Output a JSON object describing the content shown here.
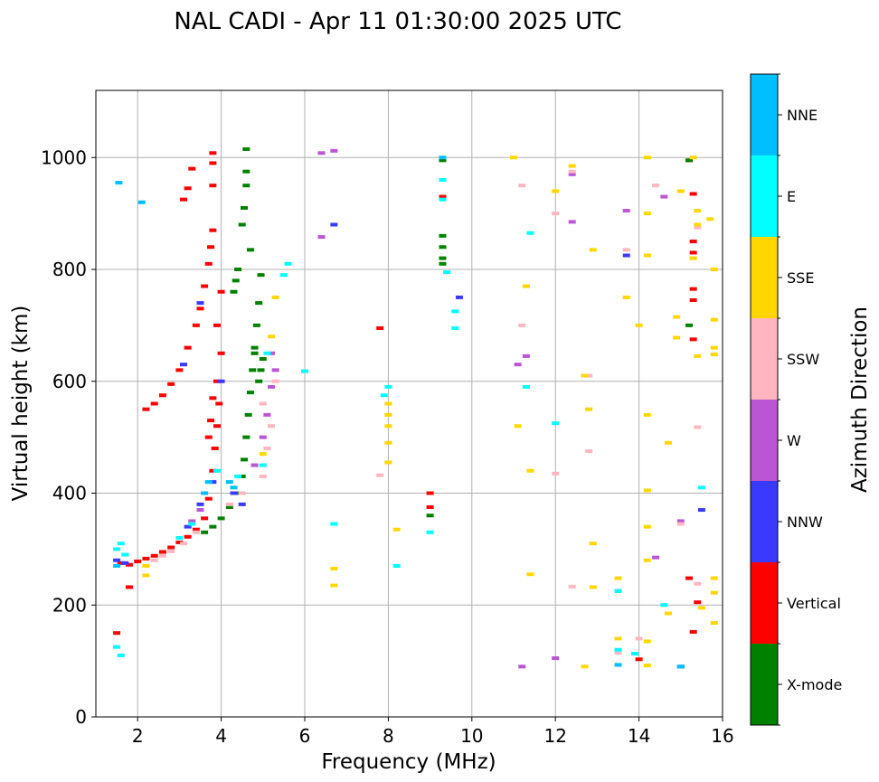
{
  "chart_data": {
    "type": "scatter",
    "title": "NAL CADI - Apr 11 01:30:00 2025 UTC",
    "xlabel": "Frequency (MHz)",
    "ylabel": "Virtual height (km)",
    "xlim": [
      1,
      16
    ],
    "ylim": [
      0,
      1120
    ],
    "xticks": [
      2,
      4,
      6,
      8,
      10,
      12,
      14,
      16
    ],
    "yticks": [
      0,
      200,
      400,
      600,
      800,
      1000
    ],
    "xtick_labels": [
      "2",
      "4",
      "6",
      "8",
      "10",
      "12",
      "14",
      "16"
    ],
    "ytick_labels": [
      "0",
      "200",
      "400",
      "600",
      "800",
      "1000"
    ],
    "grid": true,
    "colorbar": {
      "label": "Azimuth Direction",
      "categories": [
        {
          "name": "X-mode",
          "color": "#008000"
        },
        {
          "name": "Vertical",
          "color": "#ff0000"
        },
        {
          "name": "NNW",
          "color": "#3a3aff"
        },
        {
          "name": "W",
          "color": "#ba55d3"
        },
        {
          "name": "SSW",
          "color": "#ffb6c1"
        },
        {
          "name": "SSE",
          "color": "#ffd700"
        },
        {
          "name": "E",
          "color": "#00ffff"
        },
        {
          "name": "NNE",
          "color": "#00bfff"
        }
      ]
    },
    "series": [
      {
        "name": "Vertical",
        "points": [
          [
            1.6,
            275
          ],
          [
            1.8,
            272
          ],
          [
            2.0,
            278
          ],
          [
            2.2,
            283
          ],
          [
            2.4,
            288
          ],
          [
            2.6,
            295
          ],
          [
            2.8,
            303
          ],
          [
            3.0,
            312
          ],
          [
            3.2,
            322
          ],
          [
            3.4,
            335
          ],
          [
            3.6,
            355
          ],
          [
            3.7,
            390
          ],
          [
            3.8,
            440
          ],
          [
            3.85,
            480
          ],
          [
            3.9,
            520
          ],
          [
            3.95,
            560
          ],
          [
            3.7,
            500
          ],
          [
            3.75,
            530
          ],
          [
            3.8,
            570
          ],
          [
            3.9,
            600
          ],
          [
            4.0,
            650
          ],
          [
            3.9,
            700
          ],
          [
            4.0,
            760
          ],
          [
            2.2,
            550
          ],
          [
            2.4,
            560
          ],
          [
            2.6,
            575
          ],
          [
            2.8,
            595
          ],
          [
            3.0,
            620
          ],
          [
            3.2,
            660
          ],
          [
            3.4,
            700
          ],
          [
            3.5,
            730
          ],
          [
            3.6,
            770
          ],
          [
            3.7,
            810
          ],
          [
            3.75,
            840
          ],
          [
            3.8,
            870
          ],
          [
            3.1,
            925
          ],
          [
            3.2,
            945
          ],
          [
            3.3,
            980
          ],
          [
            3.8,
            990
          ],
          [
            3.8,
            1008
          ],
          [
            3.8,
            950
          ],
          [
            1.5,
            150
          ],
          [
            1.8,
            232
          ],
          [
            7.8,
            695
          ],
          [
            9.0,
            400
          ],
          [
            9.0,
            375
          ],
          [
            9.3,
            930
          ],
          [
            15.2,
            995
          ],
          [
            15.3,
            935
          ],
          [
            15.3,
            850
          ],
          [
            15.3,
            830
          ],
          [
            15.3,
            765
          ],
          [
            15.3,
            745
          ],
          [
            15.3,
            675
          ],
          [
            15.4,
            205
          ],
          [
            15.3,
            152
          ],
          [
            15.2,
            248
          ],
          [
            14.0,
            103
          ]
        ]
      },
      {
        "name": "X-mode",
        "points": [
          [
            3.6,
            330
          ],
          [
            3.8,
            340
          ],
          [
            4.0,
            355
          ],
          [
            4.2,
            375
          ],
          [
            4.4,
            400
          ],
          [
            4.5,
            430
          ],
          [
            4.55,
            460
          ],
          [
            4.6,
            500
          ],
          [
            4.65,
            540
          ],
          [
            4.7,
            580
          ],
          [
            4.75,
            620
          ],
          [
            4.8,
            660
          ],
          [
            4.85,
            700
          ],
          [
            4.9,
            740
          ],
          [
            4.95,
            790
          ],
          [
            4.3,
            760
          ],
          [
            4.35,
            780
          ],
          [
            4.4,
            800
          ],
          [
            4.5,
            880
          ],
          [
            4.55,
            910
          ],
          [
            4.6,
            950
          ],
          [
            4.6,
            975
          ],
          [
            4.6,
            1015
          ],
          [
            4.7,
            835
          ],
          [
            4.9,
            600
          ],
          [
            4.95,
            620
          ],
          [
            5.0,
            640
          ],
          [
            4.8,
            650
          ],
          [
            9.3,
            860
          ],
          [
            9.3,
            840
          ],
          [
            9.3,
            820
          ],
          [
            9.3,
            810
          ],
          [
            9.0,
            360
          ],
          [
            9.3,
            995
          ],
          [
            13.5,
            225
          ],
          [
            15.2,
            700
          ],
          [
            15.2,
            995
          ]
        ]
      },
      {
        "name": "NNW",
        "points": [
          [
            1.5,
            280
          ],
          [
            1.7,
            275
          ],
          [
            3.2,
            340
          ],
          [
            3.5,
            380
          ],
          [
            3.8,
            420
          ],
          [
            4.3,
            400
          ],
          [
            4.5,
            380
          ],
          [
            3.1,
            630
          ],
          [
            3.5,
            740
          ],
          [
            4.0,
            600
          ],
          [
            6.7,
            880
          ],
          [
            9.7,
            750
          ],
          [
            13.7,
            825
          ],
          [
            15.5,
            370
          ],
          [
            15.0,
            90
          ],
          [
            13.5,
            93
          ]
        ]
      },
      {
        "name": "W",
        "points": [
          [
            3.3,
            350
          ],
          [
            3.5,
            370
          ],
          [
            4.8,
            450
          ],
          [
            5.0,
            500
          ],
          [
            5.1,
            540
          ],
          [
            5.2,
            590
          ],
          [
            5.3,
            620
          ],
          [
            5.2,
            650
          ],
          [
            6.4,
            1008
          ],
          [
            6.7,
            1012
          ],
          [
            6.4,
            858
          ],
          [
            11.1,
            630
          ],
          [
            11.3,
            645
          ],
          [
            12.4,
            885
          ],
          [
            12.4,
            970
          ],
          [
            13.7,
            905
          ],
          [
            14.6,
            930
          ],
          [
            14.4,
            285
          ],
          [
            15.0,
            350
          ],
          [
            11.2,
            90
          ],
          [
            12.0,
            105
          ]
        ]
      },
      {
        "name": "SSW",
        "points": [
          [
            2.4,
            280
          ],
          [
            2.6,
            288
          ],
          [
            2.8,
            296
          ],
          [
            3.1,
            310
          ],
          [
            3.4,
            330
          ],
          [
            4.2,
            380
          ],
          [
            4.5,
            400
          ],
          [
            5.0,
            560
          ],
          [
            5.2,
            520
          ],
          [
            5.1,
            480
          ],
          [
            5.3,
            600
          ],
          [
            5.0,
            430
          ],
          [
            7.8,
            432
          ],
          [
            11.2,
            950
          ],
          [
            12.0,
            435
          ],
          [
            12.4,
            975
          ],
          [
            12.8,
            475
          ],
          [
            12.4,
            233
          ],
          [
            13.7,
            835
          ],
          [
            13.5,
            115
          ],
          [
            14.4,
            950
          ],
          [
            15.4,
            875
          ],
          [
            15.4,
            518
          ],
          [
            15.4,
            238
          ],
          [
            14.0,
            140
          ],
          [
            15.0,
            345
          ],
          [
            11.2,
            700
          ],
          [
            12.0,
            900
          ],
          [
            12.8,
            610
          ]
        ]
      },
      {
        "name": "SSE",
        "points": [
          [
            2.2,
            270
          ],
          [
            2.2,
            253
          ],
          [
            5.0,
            470
          ],
          [
            5.2,
            680
          ],
          [
            5.3,
            750
          ],
          [
            6.7,
            265
          ],
          [
            6.7,
            235
          ],
          [
            8.0,
            540
          ],
          [
            8.0,
            560
          ],
          [
            8.0,
            520
          ],
          [
            8.0,
            455
          ],
          [
            8.0,
            490
          ],
          [
            8.2,
            335
          ],
          [
            11.3,
            770
          ],
          [
            11.1,
            520
          ],
          [
            11.4,
            440
          ],
          [
            11.4,
            255
          ],
          [
            12.0,
            940
          ],
          [
            12.4,
            985
          ],
          [
            12.7,
            610
          ],
          [
            12.8,
            550
          ],
          [
            12.9,
            835
          ],
          [
            12.9,
            310
          ],
          [
            12.9,
            232
          ],
          [
            12.7,
            90
          ],
          [
            13.5,
            248
          ],
          [
            13.5,
            140
          ],
          [
            13.7,
            750
          ],
          [
            14.0,
            700
          ],
          [
            14.2,
            1000
          ],
          [
            14.2,
            900
          ],
          [
            14.2,
            825
          ],
          [
            14.2,
            540
          ],
          [
            14.2,
            405
          ],
          [
            14.2,
            340
          ],
          [
            14.2,
            280
          ],
          [
            14.2,
            135
          ],
          [
            14.2,
            92
          ],
          [
            14.7,
            490
          ],
          [
            14.7,
            185
          ],
          [
            14.9,
            715
          ],
          [
            14.9,
            678
          ],
          [
            15.0,
            940
          ],
          [
            15.4,
            905
          ],
          [
            15.4,
            880
          ],
          [
            15.4,
            645
          ],
          [
            15.5,
            195
          ],
          [
            15.7,
            890
          ],
          [
            15.8,
            800
          ],
          [
            15.8,
            710
          ],
          [
            15.8,
            660
          ],
          [
            15.8,
            648
          ],
          [
            15.8,
            248
          ],
          [
            15.8,
            222
          ],
          [
            15.8,
            168
          ],
          [
            11.0,
            1000
          ],
          [
            15.3,
            1000
          ],
          [
            15.3,
            820
          ]
        ]
      },
      {
        "name": "E",
        "points": [
          [
            1.5,
            300
          ],
          [
            1.6,
            310
          ],
          [
            1.7,
            290
          ],
          [
            3.0,
            320
          ],
          [
            3.3,
            345
          ],
          [
            3.9,
            440
          ],
          [
            4.4,
            430
          ],
          [
            5.0,
            450
          ],
          [
            5.1,
            650
          ],
          [
            5.5,
            790
          ],
          [
            5.6,
            810
          ],
          [
            6.0,
            618
          ],
          [
            6.7,
            345
          ],
          [
            7.9,
            575
          ],
          [
            8.0,
            590
          ],
          [
            8.2,
            270
          ],
          [
            9.0,
            330
          ],
          [
            9.3,
            960
          ],
          [
            9.3,
            925
          ],
          [
            9.4,
            795
          ],
          [
            9.6,
            695
          ],
          [
            9.6,
            725
          ],
          [
            11.3,
            590
          ],
          [
            11.4,
            865
          ],
          [
            12.0,
            525
          ],
          [
            13.5,
            120
          ],
          [
            13.5,
            225
          ],
          [
            13.9,
            113
          ],
          [
            14.6,
            200
          ],
          [
            15.5,
            410
          ],
          [
            1.5,
            125
          ],
          [
            1.6,
            110
          ]
        ]
      },
      {
        "name": "NNE",
        "points": [
          [
            1.55,
            955
          ],
          [
            2.1,
            920
          ],
          [
            1.5,
            270
          ],
          [
            3.6,
            400
          ],
          [
            3.7,
            420
          ],
          [
            4.2,
            420
          ],
          [
            4.3,
            410
          ],
          [
            9.3,
            1000
          ],
          [
            13.5,
            93
          ],
          [
            15.0,
            90
          ]
        ]
      }
    ]
  }
}
